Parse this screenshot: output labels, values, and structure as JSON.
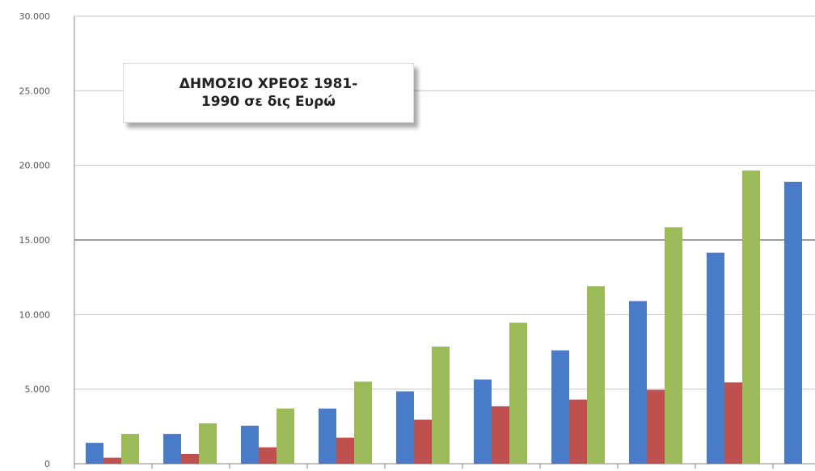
{
  "chart_data": {
    "type": "bar",
    "title": "ΔΗΜΟΣΙΟ ΧΡΕΟΣ 1981-1990 σε δις Ευρώ",
    "xlabel": "",
    "ylabel": "",
    "ylim": [
      0,
      30000
    ],
    "yticks": [
      "0",
      "5.000",
      "10.000",
      "15.000",
      "20.000",
      "25.000",
      "30.000"
    ],
    "ytick_values": [
      0,
      5000,
      10000,
      15000,
      20000,
      25000,
      30000
    ],
    "grid": true,
    "legend": "none",
    "categories": [
      "",
      "",
      "",
      "",
      "",
      "",
      "",
      "",
      "",
      ""
    ],
    "series": [
      {
        "color": "#4a7bc8",
        "values": [
          1400,
          2000,
          2550,
          3700,
          4850,
          5650,
          7600,
          10900,
          14150,
          18900
        ]
      },
      {
        "color": "#c0504d",
        "values": [
          400,
          650,
          1100,
          1750,
          2950,
          3850,
          4300,
          4950,
          5450,
          null
        ]
      },
      {
        "color": "#9bbb59",
        "values": [
          2000,
          2700,
          3700,
          5500,
          7850,
          9450,
          11900,
          15850,
          19650,
          null
        ]
      }
    ]
  }
}
